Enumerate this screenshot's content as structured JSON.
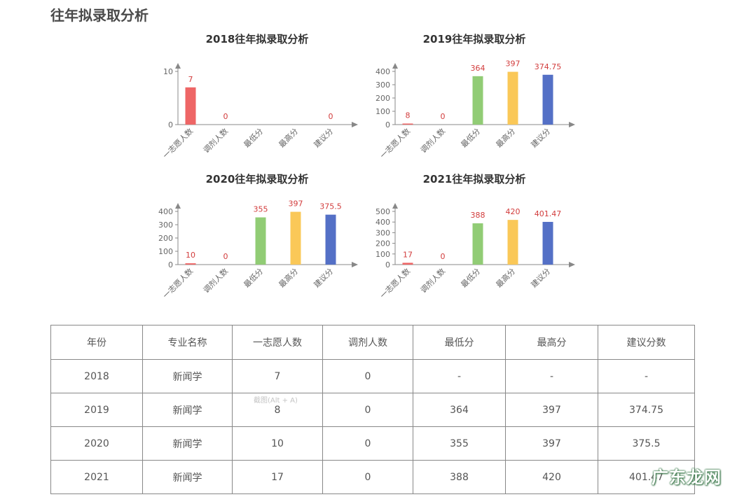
{
  "page": {
    "title": "往年拟录取分析"
  },
  "colors": {
    "series": [
      "#ee6666",
      "#ee6666",
      "#91cc75",
      "#fac858",
      "#5470c6"
    ]
  },
  "chart_data": [
    {
      "type": "bar",
      "title": "2018往年拟录取分析",
      "categories": [
        "一志愿人数",
        "调剂人数",
        "最低分",
        "最高分",
        "建议分"
      ],
      "values": [
        7,
        0,
        null,
        null,
        0
      ],
      "labels": [
        "7",
        "0",
        "",
        "",
        "0"
      ],
      "ylim": [
        0,
        10
      ],
      "yticks": [
        0,
        10
      ]
    },
    {
      "type": "bar",
      "title": "2019往年拟录取分析",
      "categories": [
        "一志愿人数",
        "调剂人数",
        "最低分",
        "最高分",
        "建议分"
      ],
      "values": [
        8,
        0,
        364,
        397,
        374.75
      ],
      "labels": [
        "8",
        "0",
        "364",
        "397",
        "374.75"
      ],
      "ylim": [
        0,
        400
      ],
      "yticks": [
        0,
        100,
        200,
        300,
        400
      ]
    },
    {
      "type": "bar",
      "title": "2020往年拟录取分析",
      "categories": [
        "一志愿人数",
        "调剂人数",
        "最低分",
        "最高分",
        "建议分"
      ],
      "values": [
        10,
        0,
        355,
        397,
        375.5
      ],
      "labels": [
        "10",
        "0",
        "355",
        "397",
        "375.5"
      ],
      "ylim": [
        0,
        400
      ],
      "yticks": [
        0,
        100,
        200,
        300,
        400
      ]
    },
    {
      "type": "bar",
      "title": "2021往年拟录取分析",
      "categories": [
        "一志愿人数",
        "调剂人数",
        "最低分",
        "最高分",
        "建议分"
      ],
      "values": [
        17,
        0,
        388,
        420,
        401.47
      ],
      "labels": [
        "17",
        "0",
        "388",
        "420",
        "401.47"
      ],
      "ylim": [
        0,
        500
      ],
      "yticks": [
        0,
        100,
        200,
        300,
        400,
        500
      ]
    }
  ],
  "table": {
    "headers": [
      "年份",
      "专业名称",
      "一志愿人数",
      "调剂人数",
      "最低分",
      "最高分",
      "建议分数"
    ],
    "rows": [
      [
        "2018",
        "新闻学",
        "7",
        "0",
        "-",
        "-",
        "-"
      ],
      [
        "2019",
        "新闻学",
        "8",
        "0",
        "364",
        "397",
        "374.75"
      ],
      [
        "2020",
        "新闻学",
        "10",
        "0",
        "355",
        "397",
        "375.5"
      ],
      [
        "2021",
        "新闻学",
        "17",
        "0",
        "388",
        "420",
        "401.47"
      ]
    ]
  },
  "overlay": {
    "screenshot_hint": "截图(Alt + A)",
    "watermark": "广东龙网"
  }
}
